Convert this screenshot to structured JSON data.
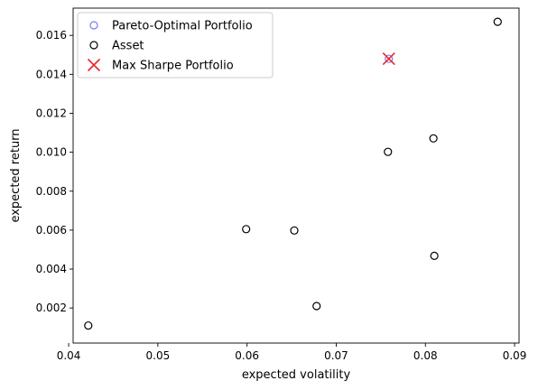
{
  "chart_data": {
    "type": "scatter",
    "title": "",
    "xlabel": "expected volatility",
    "ylabel": "expected return",
    "xlim": [
      0.0405,
      0.0905
    ],
    "ylim": [
      0.0002,
      0.0174
    ],
    "xticks": [
      0.04,
      0.05,
      0.06,
      0.07,
      0.08,
      0.09
    ],
    "xtick_labels": [
      "0.04",
      "0.05",
      "0.06",
      "0.07",
      "0.08",
      "0.09"
    ],
    "yticks": [
      0.002,
      0.004,
      0.006,
      0.008,
      0.01,
      0.012,
      0.014,
      0.016
    ],
    "ytick_labels": [
      "0.002",
      "0.004",
      "0.006",
      "0.008",
      "0.010",
      "0.012",
      "0.014",
      "0.016"
    ],
    "grid": false,
    "legend_position": "top-left",
    "series": [
      {
        "name": "Pareto-Optimal Portfolio",
        "marker": "open-circle",
        "color": "#7b7bf0",
        "points": [
          {
            "x": 0.0759,
            "y": 0.0148
          }
        ]
      },
      {
        "name": "Asset",
        "marker": "open-circle",
        "color": "#000000",
        "points": [
          {
            "x": 0.0422,
            "y": 0.0011
          },
          {
            "x": 0.0599,
            "y": 0.00605
          },
          {
            "x": 0.0653,
            "y": 0.00598
          },
          {
            "x": 0.0678,
            "y": 0.0021
          },
          {
            "x": 0.0758,
            "y": 0.01002
          },
          {
            "x": 0.0809,
            "y": 0.01071
          },
          {
            "x": 0.081,
            "y": 0.00468
          },
          {
            "x": 0.0881,
            "y": 0.0167
          }
        ]
      },
      {
        "name": "Max Sharpe Portfolio",
        "marker": "x",
        "color": "#e8262a",
        "points": [
          {
            "x": 0.0759,
            "y": 0.0148
          }
        ]
      }
    ]
  }
}
